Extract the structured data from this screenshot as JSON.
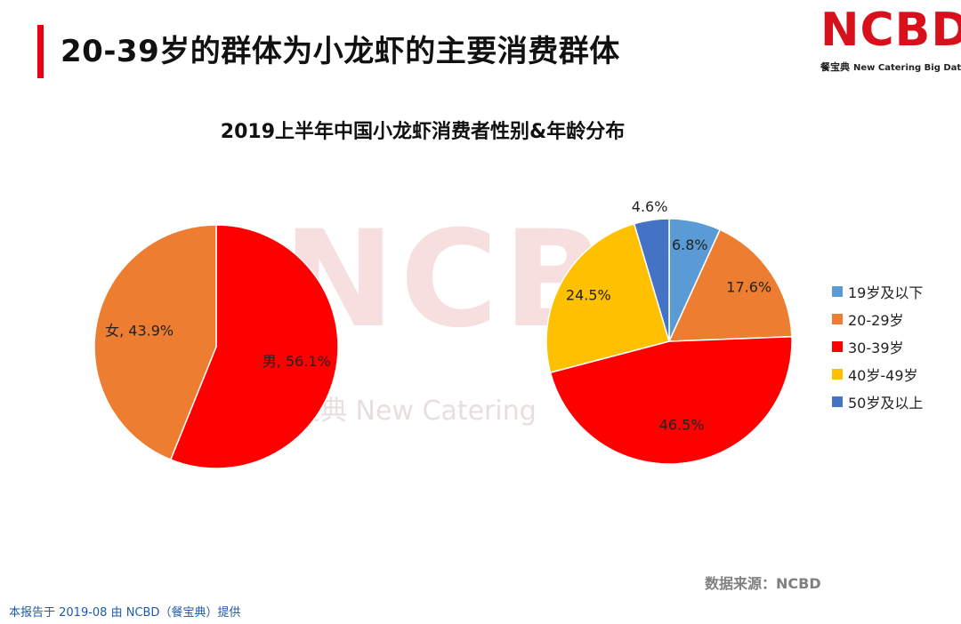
{
  "header": {
    "title": "20-39岁的群体为小龙虾的主要消费群体"
  },
  "logo": {
    "name": "NCBD",
    "sub_cn": "餐宝典",
    "sub_en": "New Catering Big Data"
  },
  "watermark": {
    "text": "NCBD",
    "sub": "宝典  New Catering"
  },
  "colors": {
    "accent": "#e60012",
    "male": "#ff0000",
    "female": "#ed7d31",
    "age_19_below": "#5b9bd5",
    "age_20_29": "#ed7d31",
    "age_30_39": "#ff0000",
    "age_40_49": "#ffc000",
    "age_50_above": "#4472c4"
  },
  "chart_data": [
    {
      "type": "pie",
      "title": "2019上半年中国小龙虾消费者性别&年龄分布",
      "categories": [
        "男",
        "女"
      ],
      "values": [
        56.1,
        43.9
      ],
      "labels": [
        "男, 56.1%",
        "女, 43.9%"
      ]
    },
    {
      "type": "pie",
      "categories": [
        "19岁及以下",
        "20-29岁",
        "30-39岁",
        "40岁-49岁",
        "50岁及以上"
      ],
      "values": [
        6.8,
        17.6,
        46.5,
        24.5,
        4.6
      ],
      "labels": [
        "6.8%",
        "17.6%",
        "46.5%",
        "24.5%",
        "4.6%"
      ],
      "legend": "right"
    }
  ],
  "footer": {
    "source": "数据来源：NCBD",
    "note": "本报告于 2019-08 由 NCBD（餐宝典）提供"
  }
}
